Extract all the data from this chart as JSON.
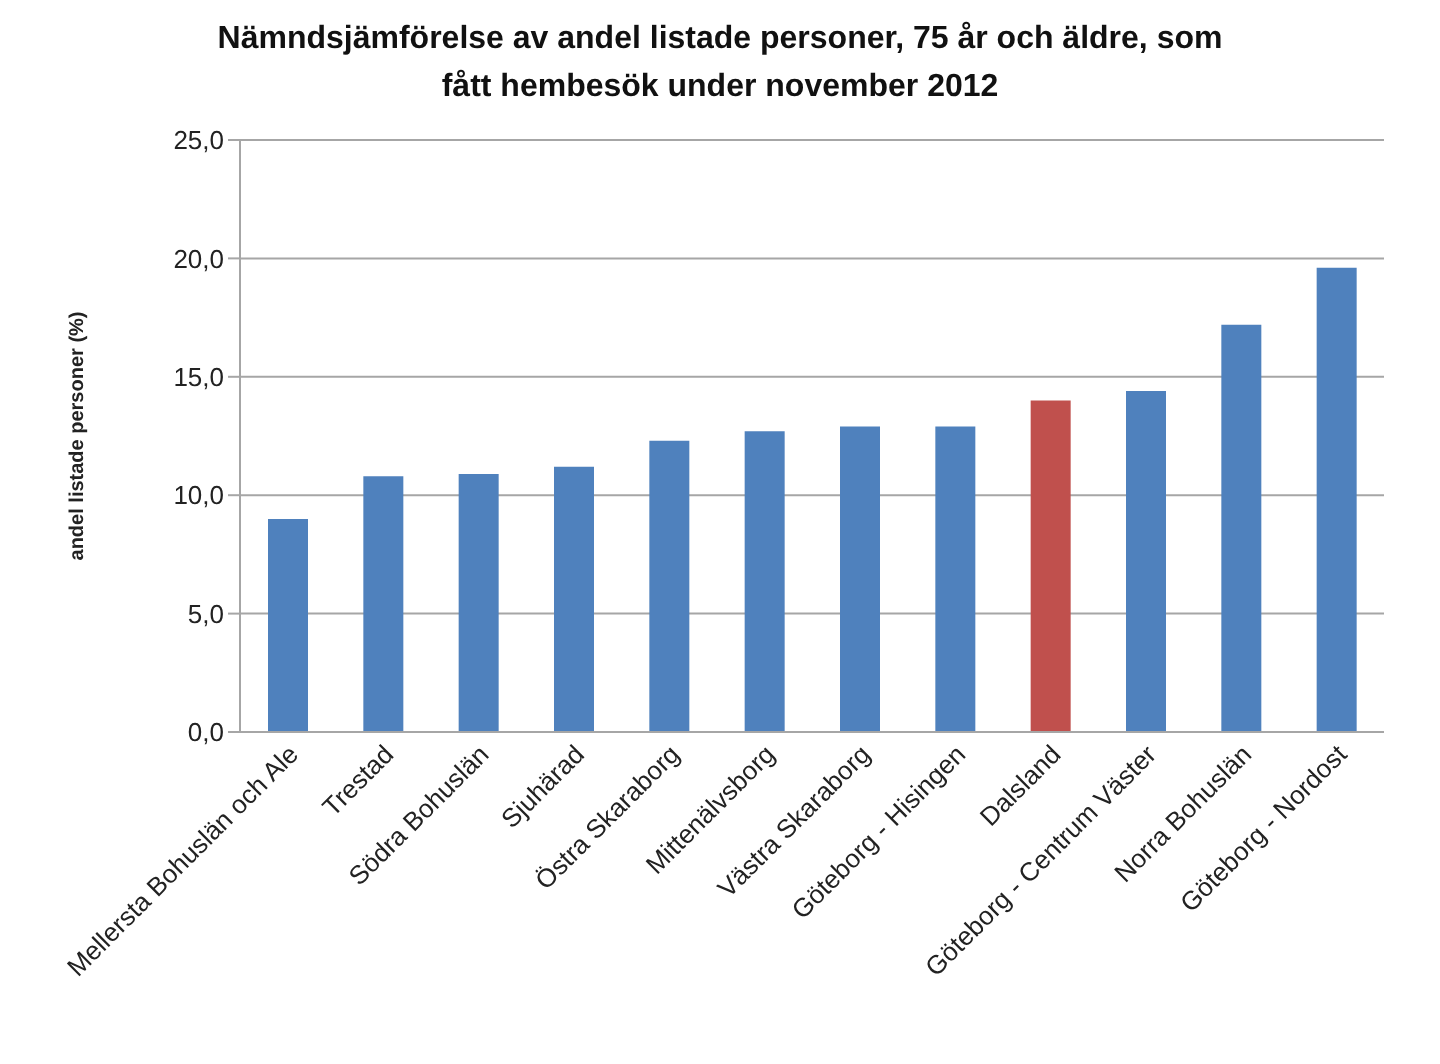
{
  "chart_data": {
    "type": "bar",
    "title": "Nämndsjämförelse av andel listade personer, 75 år och äldre, som fått hembesök under november 2012",
    "ylabel": "andel listade personer (%)",
    "categories": [
      "Mellersta Bohuslän och Ale",
      "Trestad",
      "Södra Bohuslän",
      "Sjuhärad",
      "Östra Skaraborg",
      "Mittenälvsborg",
      "Västra Skaraborg",
      "Göteborg - Hisingen",
      "Dalsland",
      "Göteborg - Centrum Väster",
      "Norra Bohuslän",
      "Göteborg - Nordost"
    ],
    "values": [
      9.0,
      10.8,
      10.9,
      11.2,
      12.3,
      12.7,
      12.9,
      12.9,
      14.0,
      14.4,
      17.2,
      19.6
    ],
    "colors": [
      "#4f81bd",
      "#4f81bd",
      "#4f81bd",
      "#4f81bd",
      "#4f81bd",
      "#4f81bd",
      "#4f81bd",
      "#4f81bd",
      "#c0504d",
      "#4f81bd",
      "#4f81bd",
      "#4f81bd"
    ],
    "ylim": [
      0,
      25
    ],
    "yticks": [
      {
        "value": 0,
        "label": "0,0"
      },
      {
        "value": 5,
        "label": "5,0"
      },
      {
        "value": 10,
        "label": "10,0"
      },
      {
        "value": 15,
        "label": "15,0"
      },
      {
        "value": 20,
        "label": "20,0"
      },
      {
        "value": 25,
        "label": "25,0"
      }
    ],
    "grid": "y",
    "legend": false
  }
}
